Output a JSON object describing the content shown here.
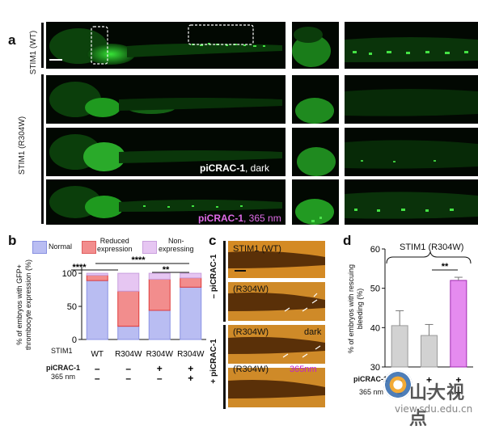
{
  "panel_a": {
    "label": "a",
    "wt_label": "STIM1 (WT)",
    "mut_label": "STIM1 (R304W)",
    "dark_label_bold": "piCRAC-1",
    "dark_label_rest": ", dark",
    "nm_label_bold": "piCRAC-1",
    "nm_label_rest": ", 365 nm"
  },
  "panel_b": {
    "label": "b",
    "legend": {
      "normal": "Normal",
      "reduced": "Reduced\nexpression",
      "non": "Non-\nexpressing"
    },
    "ylabel": "% of embryos with GFP+\nthrombocyte expression (%)",
    "sig1": "****",
    "sig2": "****",
    "sig3": "**",
    "row_stim1": "STIM1",
    "row_picrac": "piCRAC-1",
    "row_nm": "365 nm",
    "ticks": [
      "0",
      "50",
      "100"
    ]
  },
  "panel_c": {
    "label": "c",
    "minus_label": "– piCRAC-1",
    "plus_label": "+ piCRAC-1",
    "img1": "STIM1 (WT)",
    "img2": "(R304W)",
    "img3": "(R304W)",
    "img3_extra": "dark",
    "img4": "(R304W)",
    "img4_extra": "365nm"
  },
  "panel_d": {
    "label": "d",
    "title": "STIM1 (R304W)",
    "ylabel": "% of embryos with rescuing\nbleeding (%)",
    "sig": "**",
    "ticks": [
      "30",
      "40",
      "50",
      "60"
    ],
    "row_picrac": "piCRAC-1",
    "row_nm": "365 nm"
  },
  "watermark": {
    "text": "山大视点",
    "url": "view.sdu.edu.cn"
  },
  "chart_data": [
    {
      "type": "bar",
      "stacked": true,
      "categories": [
        "WT",
        "R304W",
        "R304W",
        "R304W"
      ],
      "piCRAC-1": [
        "–",
        "–",
        "+",
        "+"
      ],
      "365 nm": [
        "–",
        "–",
        "–",
        "+"
      ],
      "series": [
        {
          "name": "Normal",
          "values": [
            89,
            20,
            44,
            79
          ]
        },
        {
          "name": "Reduced expression",
          "values": [
            8,
            53,
            47,
            14
          ]
        },
        {
          "name": "Non-expressing",
          "values": [
            3,
            27,
            9,
            7
          ]
        }
      ],
      "ylabel": "% of embryos with GFP+ thrombocyte expression (%)",
      "ylim": [
        0,
        105
      ],
      "colors": {
        "Normal": "#b9bdf2",
        "Reduced expression": "#f28d8d",
        "Non-expressing": "#e6c6f2"
      }
    },
    {
      "type": "bar",
      "title": "STIM1 (R304W)",
      "categories": [
        "",
        "",
        ""
      ],
      "piCRAC-1": [
        "–",
        "+",
        "+"
      ],
      "365 nm": [
        "–",
        "–",
        "+"
      ],
      "values": [
        40.5,
        38,
        52
      ],
      "errors": [
        3.8,
        2.8,
        0.8
      ],
      "ylabel": "% of embryos with rescuing bleeding (%)",
      "ylim": [
        30,
        60
      ],
      "colors": [
        "#d2d2d2",
        "#d2d2d2",
        "#e58bef"
      ]
    }
  ]
}
